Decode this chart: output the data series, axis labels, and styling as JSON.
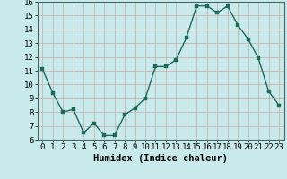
{
  "x": [
    0,
    1,
    2,
    3,
    4,
    5,
    6,
    7,
    8,
    9,
    10,
    11,
    12,
    13,
    14,
    15,
    16,
    17,
    18,
    19,
    20,
    21,
    22,
    23
  ],
  "y": [
    11.1,
    9.4,
    8.0,
    8.2,
    6.5,
    7.2,
    6.3,
    6.3,
    7.8,
    8.3,
    9.0,
    11.3,
    11.3,
    11.8,
    13.4,
    15.7,
    15.7,
    15.2,
    15.7,
    14.3,
    13.3,
    11.9,
    9.5,
    8.5
  ],
  "line_color": "#1a6b5a",
  "marker_color": "#1a6b5a",
  "bg_color": "#c8eaea",
  "grid_color": "#c8a8a8",
  "xlabel": "Humidex (Indice chaleur)",
  "ylim": [
    6,
    16
  ],
  "xlim_min": -0.5,
  "xlim_max": 23.5,
  "yticks": [
    6,
    7,
    8,
    9,
    10,
    11,
    12,
    13,
    14,
    15,
    16
  ],
  "xticks": [
    0,
    1,
    2,
    3,
    4,
    5,
    6,
    7,
    8,
    9,
    10,
    11,
    12,
    13,
    14,
    15,
    16,
    17,
    18,
    19,
    20,
    21,
    22,
    23
  ],
  "tick_label_fontsize": 6.5,
  "xlabel_fontsize": 7.5,
  "marker_size": 2.5,
  "line_width": 1.0
}
